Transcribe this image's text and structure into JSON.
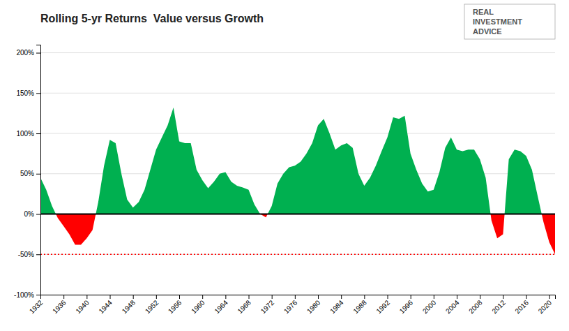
{
  "chart_data": {
    "type": "area",
    "title": "Rolling 5-yr Returns  Value versus Growth",
    "x": [
      1932,
      1933,
      1934,
      1935,
      1936,
      1937,
      1938,
      1939,
      1940,
      1941,
      1942,
      1943,
      1944,
      1945,
      1946,
      1947,
      1948,
      1949,
      1950,
      1951,
      1952,
      1953,
      1954,
      1955,
      1956,
      1957,
      1958,
      1959,
      1960,
      1961,
      1962,
      1963,
      1964,
      1965,
      1966,
      1967,
      1968,
      1969,
      1970,
      1971,
      1972,
      1973,
      1974,
      1975,
      1976,
      1977,
      1978,
      1979,
      1980,
      1981,
      1982,
      1983,
      1984,
      1985,
      1986,
      1987,
      1988,
      1989,
      1990,
      1991,
      1992,
      1993,
      1994,
      1995,
      1996,
      1997,
      1998,
      1999,
      2000,
      2001,
      2002,
      2003,
      2004,
      2005,
      2006,
      2007,
      2008,
      2009,
      2010,
      2011,
      2012,
      2013,
      2014,
      2015,
      2016,
      2017,
      2018,
      2019,
      2020,
      2021
    ],
    "values": [
      0.45,
      0.3,
      0.1,
      -0.05,
      -0.15,
      -0.25,
      -0.38,
      -0.38,
      -0.3,
      -0.2,
      0.15,
      0.6,
      0.92,
      0.88,
      0.5,
      0.18,
      0.08,
      0.15,
      0.3,
      0.55,
      0.8,
      0.95,
      1.1,
      1.32,
      0.9,
      0.88,
      0.88,
      0.55,
      0.42,
      0.32,
      0.4,
      0.5,
      0.52,
      0.4,
      0.35,
      0.33,
      0.3,
      0.12,
      0.0,
      -0.04,
      0.1,
      0.38,
      0.5,
      0.58,
      0.6,
      0.65,
      0.75,
      0.88,
      1.1,
      1.18,
      1.0,
      0.8,
      0.85,
      0.88,
      0.82,
      0.5,
      0.35,
      0.45,
      0.6,
      0.78,
      0.95,
      1.2,
      1.18,
      1.22,
      0.75,
      0.55,
      0.38,
      0.28,
      0.3,
      0.52,
      0.82,
      0.95,
      0.8,
      0.78,
      0.8,
      0.8,
      0.68,
      0.45,
      -0.08,
      -0.3,
      -0.25,
      0.68,
      0.8,
      0.78,
      0.72,
      0.55,
      0.22,
      -0.1,
      -0.35,
      -0.5
    ],
    "colors": [
      "#00b050",
      "#ff0000"
    ],
    "xlim": [
      1932,
      2021
    ],
    "xticks": [
      1932,
      1936,
      1940,
      1944,
      1948,
      1952,
      1956,
      1960,
      1964,
      1968,
      1972,
      1976,
      1980,
      1984,
      1988,
      1992,
      1996,
      2000,
      2004,
      2008,
      2012,
      2016,
      2020
    ],
    "ylim": [
      -1.0,
      2.1
    ],
    "yticks": [
      {
        "value": -1.0,
        "label": "-100%"
      },
      {
        "value": -0.5,
        "label": "-50%"
      },
      {
        "value": 0.0,
        "label": "0%"
      },
      {
        "value": 0.5,
        "label": "50%"
      },
      {
        "value": 1.0,
        "label": "100%"
      },
      {
        "value": 1.5,
        "label": "150%"
      },
      {
        "value": 2.0,
        "label": "200%"
      }
    ],
    "hlines": [
      {
        "y": 0.0,
        "color": "#000000",
        "line_style": "solid"
      },
      {
        "y": -0.5,
        "color": "#ff0000",
        "line_style": "dotted"
      }
    ],
    "annotations": [
      "REAL",
      "INVESTMENT",
      "ADVICE"
    ],
    "grid": true
  }
}
